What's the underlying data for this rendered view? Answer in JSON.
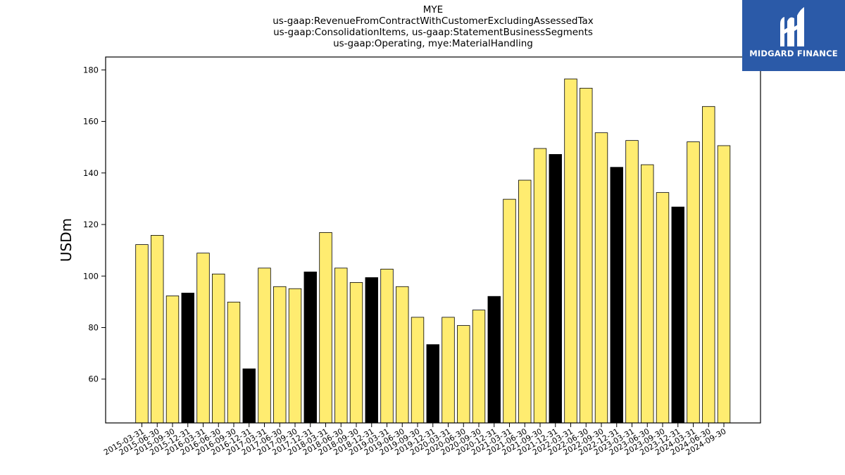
{
  "chart_data": {
    "type": "bar",
    "title_lines": [
      "MYE",
      "us-gaap:RevenueFromContractWithCustomerExcludingAssessedTax",
      "us-gaap:ConsolidationItems, us-gaap:StatementBusinessSegments",
      "us-gaap:Operating, mye:MaterialHandling"
    ],
    "ylabel": "USDm",
    "xlabel": "",
    "ylim": [
      43,
      185
    ],
    "yticks": [
      60,
      80,
      100,
      120,
      140,
      160,
      180
    ],
    "grid": false,
    "colors": {
      "default": "#ffec70",
      "q4": "#000000",
      "edge": "#000000"
    },
    "categories": [
      "2015-03-31",
      "2015-06-30",
      "2015-09-30",
      "2015-12-31",
      "2016-03-31",
      "2016-06-30",
      "2016-09-30",
      "2016-12-31",
      "2017-03-31",
      "2017-06-30",
      "2017-09-30",
      "2017-12-31",
      "2018-03-31",
      "2018-06-30",
      "2018-09-30",
      "2018-12-31",
      "2019-03-31",
      "2019-06-30",
      "2019-09-30",
      "2019-12-31",
      "2020-03-31",
      "2020-06-30",
      "2020-09-30",
      "2020-12-31",
      "2021-03-31",
      "2021-06-30",
      "2021-09-30",
      "2021-12-31",
      "2022-03-31",
      "2022-06-30",
      "2022-09-30",
      "2022-12-31",
      "2023-03-31",
      "2023-06-30",
      "2023-09-30",
      "2023-12-31",
      "2024-03-31",
      "2024-06-30",
      "2024-09-30"
    ],
    "values": [
      112.2,
      115.8,
      92.3,
      93.4,
      108.9,
      100.8,
      89.9,
      64.0,
      103.1,
      95.9,
      95.1,
      101.6,
      116.9,
      103.1,
      97.5,
      99.4,
      102.7,
      95.9,
      84.0,
      73.4,
      84.0,
      80.8,
      86.8,
      92.1,
      129.8,
      137.2,
      149.5,
      147.2,
      176.5,
      172.9,
      155.6,
      142.2,
      152.6,
      143.2,
      132.4,
      126.8,
      152.1,
      165.8,
      150.6
    ]
  },
  "brand": {
    "name": "MIDGARD FINANCE",
    "logo_icon": "midgard-m-logo-icon",
    "background": "#2b5aa8"
  }
}
